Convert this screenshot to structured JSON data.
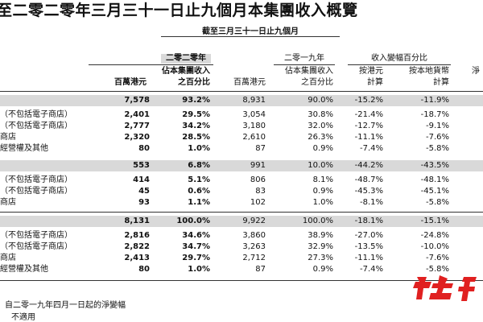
{
  "title": "至二零二零年三月三十一日止九個月本集團收入概覽",
  "period_header": "截至三月三十一日止九個月",
  "headers": {
    "year_2020": "二零二零年",
    "year_2019": "二零一九年",
    "change_group": "收入變幅百分比",
    "net_partial": "淨",
    "hk_m": "百萬港元",
    "share_of_rev_line1": "佔本集團收入",
    "share_of_rev_line2": "之百分比",
    "hk_m_2019": "百萬港元",
    "share_2019_line1": "佔本集團收入",
    "share_2019_line2": "之百分比",
    "by_hkd_line1": "按港元",
    "by_hkd_line2": "計算",
    "by_local_line1": "按本地貨幣",
    "by_local_line2": "計算"
  },
  "sections": [
    {
      "rows": [
        {
          "label": "",
          "v": [
            "7,578",
            "93.2%",
            "8,931",
            "90.0%",
            "-15.2%",
            "-11.9%"
          ],
          "shaded": true
        },
        {
          "label": "（不包括電子商店）",
          "v": [
            "2,401",
            "29.5%",
            "3,054",
            "30.8%",
            "-21.4%",
            "-18.7%"
          ]
        },
        {
          "label": "（不包括電子商店）",
          "v": [
            "2,777",
            "34.2%",
            "3,180",
            "32.0%",
            "-12.7%",
            "-9.1%"
          ]
        },
        {
          "label": "商店",
          "v": [
            "2,320",
            "28.5%",
            "2,610",
            "26.3%",
            "-11.1%",
            "-7.6%"
          ]
        },
        {
          "label": "經營權及其他",
          "v": [
            "80",
            "1.0%",
            "87",
            "0.9%",
            "-7.4%",
            "-5.8%"
          ]
        }
      ]
    },
    {
      "rows": [
        {
          "label": "",
          "v": [
            "553",
            "6.8%",
            "991",
            "10.0%",
            "-44.2%",
            "-43.5%"
          ],
          "shaded": true
        },
        {
          "label": "（不包括電子商店）",
          "v": [
            "414",
            "5.1%",
            "806",
            "8.1%",
            "-48.7%",
            "-48.1%"
          ]
        },
        {
          "label": "（不包括電子商店）",
          "v": [
            "45",
            "0.6%",
            "83",
            "0.9%",
            "-45.3%",
            "-45.1%"
          ]
        },
        {
          "label": "商店",
          "v": [
            "93",
            "1.1%",
            "102",
            "1.0%",
            "-8.1%",
            "-5.8%"
          ]
        }
      ]
    },
    {
      "rows": [
        {
          "label": "",
          "v": [
            "8,131",
            "100.0%",
            "9,922",
            "100.0%",
            "-18.1%",
            "-15.1%"
          ],
          "shaded": true
        },
        {
          "label": "（不包括電子商店）",
          "v": [
            "2,816",
            "34.6%",
            "3,860",
            "38.9%",
            "-27.0%",
            "-24.8%"
          ]
        },
        {
          "label": "（不包括電子商店）",
          "v": [
            "2,822",
            "34.7%",
            "3,263",
            "32.9%",
            "-13.5%",
            "-10.0%"
          ]
        },
        {
          "label": "商店",
          "v": [
            "2,413",
            "29.7%",
            "2,712",
            "27.3%",
            "-11.1%",
            "-7.6%"
          ]
        },
        {
          "label": "經營權及其他",
          "v": [
            "80",
            "1.0%",
            "87",
            "0.9%",
            "-7.4%",
            "-5.8%"
          ]
        }
      ]
    }
  ],
  "footnotes": [
    "自二零一九年四月一日起的淨變幅",
    "不適用"
  ],
  "watermark": {
    "text": "红星新",
    "color": "#e02020"
  }
}
